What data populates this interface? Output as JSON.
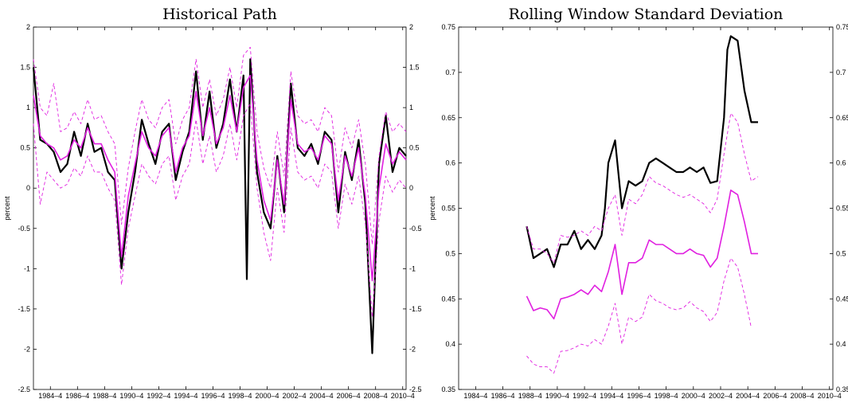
{
  "chart_data": [
    {
      "type": "line",
      "title": "Historical Path",
      "xlabel": "",
      "ylabel": "percent",
      "xlim": [
        1983.5,
        2011.0
      ],
      "ylim": [
        -2.5,
        2
      ],
      "yticks": [
        "-2.5",
        "-2",
        "-1.5",
        "-1",
        "-0.5",
        "0",
        "0.5",
        "1",
        "1.5",
        "2"
      ],
      "xticks": [
        "1984–4",
        "1986–4",
        "1988–4",
        "1990–4",
        "1992–4",
        "1994–4",
        "1996–4",
        "1998–4",
        "2000–4",
        "2002–4",
        "2004–4",
        "2006–4",
        "2008–4",
        "2010–4"
      ],
      "colors": {
        "actual": "#000000",
        "model": "#e020e0"
      },
      "series": [
        {
          "style": "solid-black",
          "x": [
            1983.5,
            1984,
            1984.5,
            1985,
            1985.5,
            1986,
            1986.5,
            1987,
            1987.5,
            1988,
            1988.5,
            1989,
            1989.5,
            1990,
            1990.5,
            1991,
            1991.5,
            1992,
            1992.5,
            1993,
            1993.5,
            1994,
            1994.5,
            1995,
            1995.5,
            1996,
            1996.5,
            1997,
            1997.5,
            1998,
            1998.5,
            1999,
            1999.25,
            1999.5,
            2000,
            2000.5,
            2001,
            2001.5,
            2002,
            2002.5,
            2003,
            2003.5,
            2004,
            2004.5,
            2005,
            2005.5,
            2006,
            2006.5,
            2007,
            2007.5,
            2008,
            2008.5,
            2009,
            2009.5,
            2010,
            2010.5,
            2011
          ],
          "y": [
            1.5,
            0.6,
            0.55,
            0.45,
            0.2,
            0.3,
            0.7,
            0.4,
            0.8,
            0.45,
            0.5,
            0.2,
            0.1,
            -1.0,
            -0.3,
            0.2,
            0.85,
            0.55,
            0.3,
            0.7,
            0.8,
            0.1,
            0.45,
            0.7,
            1.45,
            0.6,
            1.2,
            0.5,
            0.8,
            1.35,
            0.7,
            1.4,
            -1.13,
            1.6,
            0.2,
            -0.3,
            -0.5,
            0.4,
            -0.3,
            1.3,
            0.5,
            0.4,
            0.55,
            0.3,
            0.7,
            0.6,
            -0.3,
            0.45,
            0.1,
            0.6,
            -0.2,
            -2.05,
            0.3,
            0.9,
            0.2,
            0.5,
            0.4
          ]
        },
        {
          "style": "solid-magenta",
          "x": [
            1983.5,
            1984,
            1984.5,
            1985,
            1985.5,
            1986,
            1986.5,
            1987,
            1987.5,
            1988,
            1988.5,
            1989,
            1989.5,
            1990,
            1990.5,
            1991,
            1991.5,
            1992,
            1992.5,
            1993,
            1993.5,
            1994,
            1994.5,
            1995,
            1995.5,
            1996,
            1996.5,
            1997,
            1997.5,
            1998,
            1998.5,
            1999,
            1999.5,
            2000,
            2000.5,
            2001,
            2001.5,
            2002,
            2002.5,
            2003,
            2003.5,
            2004,
            2004.5,
            2005,
            2005.5,
            2006,
            2006.5,
            2007,
            2007.5,
            2008,
            2008.5,
            2009,
            2009.5,
            2010,
            2010.5,
            2011
          ],
          "y": [
            1.15,
            0.65,
            0.55,
            0.5,
            0.35,
            0.4,
            0.6,
            0.5,
            0.75,
            0.55,
            0.55,
            0.35,
            0.2,
            -0.85,
            -0.1,
            0.3,
            0.7,
            0.5,
            0.4,
            0.65,
            0.75,
            0.2,
            0.5,
            0.65,
            1.2,
            0.65,
            1.0,
            0.55,
            0.75,
            1.15,
            0.7,
            1.25,
            1.4,
            0.35,
            -0.15,
            -0.4,
            0.35,
            -0.2,
            1.1,
            0.55,
            0.45,
            0.5,
            0.35,
            0.65,
            0.55,
            -0.15,
            0.4,
            0.15,
            0.5,
            -0.1,
            -1.15,
            0.0,
            0.55,
            0.3,
            0.45,
            0.35
          ]
        },
        {
          "style": "dashed-magenta-upper",
          "x": [
            1983.5,
            1984,
            1984.5,
            1985,
            1985.5,
            1986,
            1986.5,
            1987,
            1987.5,
            1988,
            1988.5,
            1989,
            1989.5,
            1990,
            1990.5,
            1991,
            1991.5,
            1992,
            1992.5,
            1993,
            1993.5,
            1994,
            1994.5,
            1995,
            1995.5,
            1996,
            1996.5,
            1997,
            1997.5,
            1998,
            1998.5,
            1999,
            1999.5,
            2000,
            2000.5,
            2001,
            2001.5,
            2002,
            2002.5,
            2003,
            2003.5,
            2004,
            2004.5,
            2005,
            2005.5,
            2006,
            2006.5,
            2007,
            2007.5,
            2008,
            2008.5,
            2009,
            2009.5,
            2010,
            2010.5,
            2011
          ],
          "y": [
            1.6,
            1.0,
            0.9,
            1.3,
            0.7,
            0.75,
            0.95,
            0.8,
            1.1,
            0.85,
            0.9,
            0.7,
            0.55,
            -0.45,
            0.25,
            0.7,
            1.1,
            0.85,
            0.75,
            1.0,
            1.1,
            0.55,
            0.85,
            1.0,
            1.6,
            1.0,
            1.35,
            0.9,
            1.1,
            1.5,
            1.0,
            1.65,
            1.75,
            0.7,
            0.25,
            0.0,
            0.7,
            0.15,
            1.45,
            0.9,
            0.8,
            0.85,
            0.7,
            1.0,
            0.9,
            0.2,
            0.75,
            0.5,
            0.85,
            0.3,
            -0.7,
            0.4,
            0.95,
            0.7,
            0.8,
            0.7
          ]
        },
        {
          "style": "dashed-magenta-lower",
          "x": [
            1983.5,
            1984,
            1984.5,
            1985,
            1985.5,
            1986,
            1986.5,
            1987,
            1987.5,
            1988,
            1988.5,
            1989,
            1989.5,
            1990,
            1990.5,
            1991,
            1991.5,
            1992,
            1992.5,
            1993,
            1993.5,
            1994,
            1994.5,
            1995,
            1995.5,
            1996,
            1996.5,
            1997,
            1997.5,
            1998,
            1998.5,
            1999,
            1999.5,
            2000,
            2000.5,
            2001,
            2001.5,
            2002,
            2002.5,
            2003,
            2003.5,
            2004,
            2004.5,
            2005,
            2005.5,
            2006,
            2006.5,
            2007,
            2007.5,
            2008,
            2008.5,
            2009,
            2009.5,
            2010,
            2010.5,
            2011
          ],
          "y": [
            0.8,
            -0.2,
            0.2,
            0.1,
            0.0,
            0.05,
            0.25,
            0.15,
            0.4,
            0.2,
            0.2,
            0.0,
            -0.15,
            -1.2,
            -0.5,
            -0.1,
            0.3,
            0.15,
            0.05,
            0.3,
            0.4,
            -0.15,
            0.15,
            0.3,
            0.85,
            0.3,
            0.65,
            0.2,
            0.4,
            0.8,
            0.35,
            0.9,
            1.05,
            0.0,
            -0.55,
            -0.9,
            0.0,
            -0.55,
            0.75,
            0.2,
            0.1,
            0.15,
            0.0,
            0.3,
            0.2,
            -0.5,
            0.05,
            -0.2,
            0.15,
            -0.45,
            -1.6,
            -0.4,
            0.15,
            -0.05,
            0.1,
            0.0
          ]
        }
      ]
    },
    {
      "type": "line",
      "title": "Rolling Window Standard Deviation",
      "xlabel": "",
      "ylabel": "percent",
      "xlim": [
        1983.5,
        2011.0
      ],
      "ylim": [
        0.35,
        0.75
      ],
      "yticks": [
        "0.35",
        "0.4",
        "0.45",
        "0.5",
        "0.55",
        "0.6",
        "0.65",
        "0.7",
        "0.75"
      ],
      "xticks": [
        "1984–4",
        "1986–4",
        "1988–4",
        "1990–4",
        "1992–4",
        "1994–4",
        "1996–4",
        "1998–4",
        "2000–4",
        "2002–4",
        "2004–4",
        "2006–4",
        "2008–4",
        "2010–4"
      ],
      "colors": {
        "actual": "#000000",
        "model": "#e020e0"
      },
      "series": [
        {
          "style": "solid-black",
          "x": [
            1988.5,
            1989,
            1989.5,
            1990,
            1990.5,
            1991,
            1991.5,
            1992,
            1992.5,
            1993,
            1993.5,
            1994,
            1994.25,
            1994.5,
            1995,
            1995.5,
            1996,
            1996.5,
            1997,
            1997.5,
            1998,
            1998.5,
            1999,
            1999.5,
            2000,
            2000.5,
            2001,
            2001.5,
            2002,
            2002.5,
            2003,
            2003.25,
            2003.5,
            2004,
            2004.5,
            2005,
            2005.5
          ],
          "y": [
            0.53,
            0.495,
            0.5,
            0.505,
            0.485,
            0.51,
            0.51,
            0.525,
            0.505,
            0.515,
            0.505,
            0.52,
            0.55,
            0.6,
            0.625,
            0.55,
            0.58,
            0.575,
            0.58,
            0.6,
            0.605,
            0.6,
            0.595,
            0.59,
            0.59,
            0.595,
            0.59,
            0.595,
            0.578,
            0.58,
            0.65,
            0.725,
            0.74,
            0.735,
            0.68,
            0.645,
            0.645
          ]
        },
        {
          "style": "solid-magenta",
          "x": [
            1988.5,
            1989,
            1989.5,
            1990,
            1990.5,
            1991,
            1991.5,
            1992,
            1992.5,
            1993,
            1993.5,
            1994,
            1994.5,
            1995,
            1995.5,
            1996,
            1996.5,
            1997,
            1997.5,
            1998,
            1998.5,
            1999,
            1999.5,
            2000,
            2000.5,
            2001,
            2001.5,
            2002,
            2002.5,
            2003,
            2003.5,
            2004,
            2004.5,
            2005,
            2005.5
          ],
          "y": [
            0.453,
            0.437,
            0.44,
            0.438,
            0.428,
            0.45,
            0.452,
            0.455,
            0.46,
            0.455,
            0.465,
            0.458,
            0.48,
            0.51,
            0.455,
            0.49,
            0.49,
            0.495,
            0.515,
            0.51,
            0.51,
            0.505,
            0.5,
            0.5,
            0.505,
            0.5,
            0.498,
            0.485,
            0.495,
            0.53,
            0.57,
            0.565,
            0.535,
            0.5,
            0.5
          ]
        },
        {
          "style": "dashed-magenta-upper",
          "x": [
            1988.5,
            1989,
            1989.5,
            1990,
            1990.5,
            1991,
            1991.5,
            1992,
            1992.5,
            1993,
            1993.5,
            1994,
            1994.5,
            1995,
            1995.5,
            1996,
            1996.5,
            1997,
            1997.5,
            1998,
            1998.5,
            1999,
            1999.5,
            2000,
            2000.5,
            2001,
            2001.5,
            2002,
            2002.5,
            2003,
            2003.5,
            2004,
            2004.5,
            2005,
            2005.5
          ],
          "y": [
            0.53,
            0.505,
            0.505,
            0.5,
            0.49,
            0.52,
            0.518,
            0.52,
            0.525,
            0.52,
            0.53,
            0.525,
            0.55,
            0.565,
            0.52,
            0.56,
            0.555,
            0.565,
            0.585,
            0.578,
            0.575,
            0.57,
            0.565,
            0.562,
            0.565,
            0.56,
            0.555,
            0.545,
            0.56,
            0.61,
            0.655,
            0.645,
            0.61,
            0.58,
            0.585
          ]
        },
        {
          "style": "dashed-magenta-lower",
          "x": [
            1988.5,
            1989,
            1989.5,
            1990,
            1990.5,
            1991,
            1991.5,
            1992,
            1992.5,
            1993,
            1993.5,
            1994,
            1994.5,
            1995,
            1995.5,
            1996,
            1996.5,
            1997,
            1997.5,
            1998,
            1998.5,
            1999,
            1999.5,
            2000,
            2000.5,
            2001,
            2001.5,
            2002,
            2002.5,
            2003,
            2003.5,
            2004,
            2004.5,
            2005
          ],
          "y": [
            0.387,
            0.378,
            0.375,
            0.375,
            0.368,
            0.392,
            0.393,
            0.396,
            0.4,
            0.398,
            0.405,
            0.4,
            0.42,
            0.445,
            0.4,
            0.43,
            0.425,
            0.43,
            0.455,
            0.448,
            0.445,
            0.44,
            0.438,
            0.44,
            0.447,
            0.44,
            0.436,
            0.425,
            0.435,
            0.47,
            0.495,
            0.485,
            0.455,
            0.418
          ]
        }
      ]
    }
  ]
}
